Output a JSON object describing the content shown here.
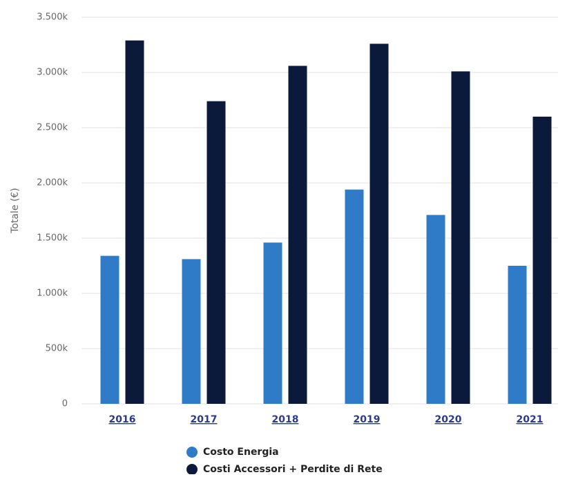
{
  "chart_data": {
    "type": "bar",
    "y_label": "Totale (€)",
    "categories": [
      "2016",
      "2017",
      "2018",
      "2019",
      "2020",
      "2021"
    ],
    "series": [
      {
        "name": "Costo Energia",
        "color": "#2f7bc8",
        "values": [
          1340,
          1310,
          1460,
          1940,
          1710,
          1250
        ]
      },
      {
        "name": "Costi Accessori + Perdite di Rete",
        "color": "#0b1a3a",
        "values": [
          3290,
          2740,
          3060,
          3260,
          3010,
          2600
        ]
      }
    ],
    "ylim": [
      0,
      3500
    ],
    "yticks": [
      0,
      {
        "value": 500,
        "label": "500k"
      },
      {
        "value": 1000,
        "label": "1.000k"
      },
      {
        "value": 1500,
        "label": "1.500k"
      },
      {
        "value": 2000,
        "label": "2.000k"
      },
      {
        "value": 2500,
        "label": "2.500k"
      },
      {
        "value": 3000,
        "label": "3.000k"
      },
      {
        "value": 3500,
        "label": "3.500k"
      }
    ],
    "grid": true
  }
}
